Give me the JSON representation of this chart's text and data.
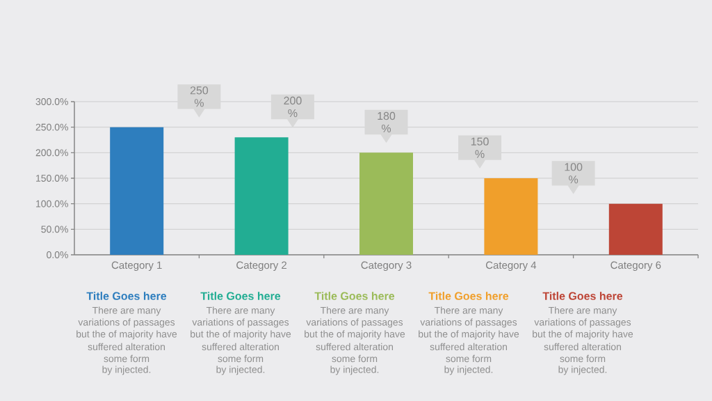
{
  "chart_data": {
    "type": "bar",
    "categories": [
      "Category 1",
      "Category 2",
      "Category 3",
      "Category 4",
      "Category 6"
    ],
    "values": [
      250,
      230,
      200,
      150,
      100
    ],
    "colors": [
      "#2e7ebe",
      "#22ad93",
      "#9bbb59",
      "#f09f2b",
      "#bd4536"
    ],
    "ylim": [
      0,
      300
    ],
    "yticks": [
      {
        "value": 0,
        "label": "0.0%"
      },
      {
        "value": 50,
        "label": "50.0%"
      },
      {
        "value": 100,
        "label": "100.0%"
      },
      {
        "value": 150,
        "label": "150.0%"
      },
      {
        "value": 200,
        "label": "200.0%"
      },
      {
        "value": 250,
        "label": "250.0%"
      },
      {
        "value": 300,
        "label": "300.0%"
      }
    ],
    "grid": "y",
    "annotations": [
      "250 %",
      "200 %",
      "180 %",
      "150 %",
      "100 %",
      "Title Goes here",
      "Title Goes here",
      "Title Goes here",
      "Title Goes here",
      "Title Goes here",
      "There are many",
      "variations of passages",
      "but the of majority have",
      "suffered alteration",
      "some form",
      "by injected.",
      "There are many",
      "variations of passages",
      "but the of majority have",
      "suffered alteration",
      "some form",
      "by injected.",
      "There are many",
      "variations of passages",
      "but the of majority have",
      "suffered alteration",
      "some form",
      "by injected.",
      "There are many",
      "variations of passages",
      "but the of majority have",
      "suffered alteration",
      "some form",
      "by injected.",
      "There are many",
      "variations of passages",
      "but the of majority have",
      "suffered alteration",
      "some form",
      "by injected."
    ]
  }
}
